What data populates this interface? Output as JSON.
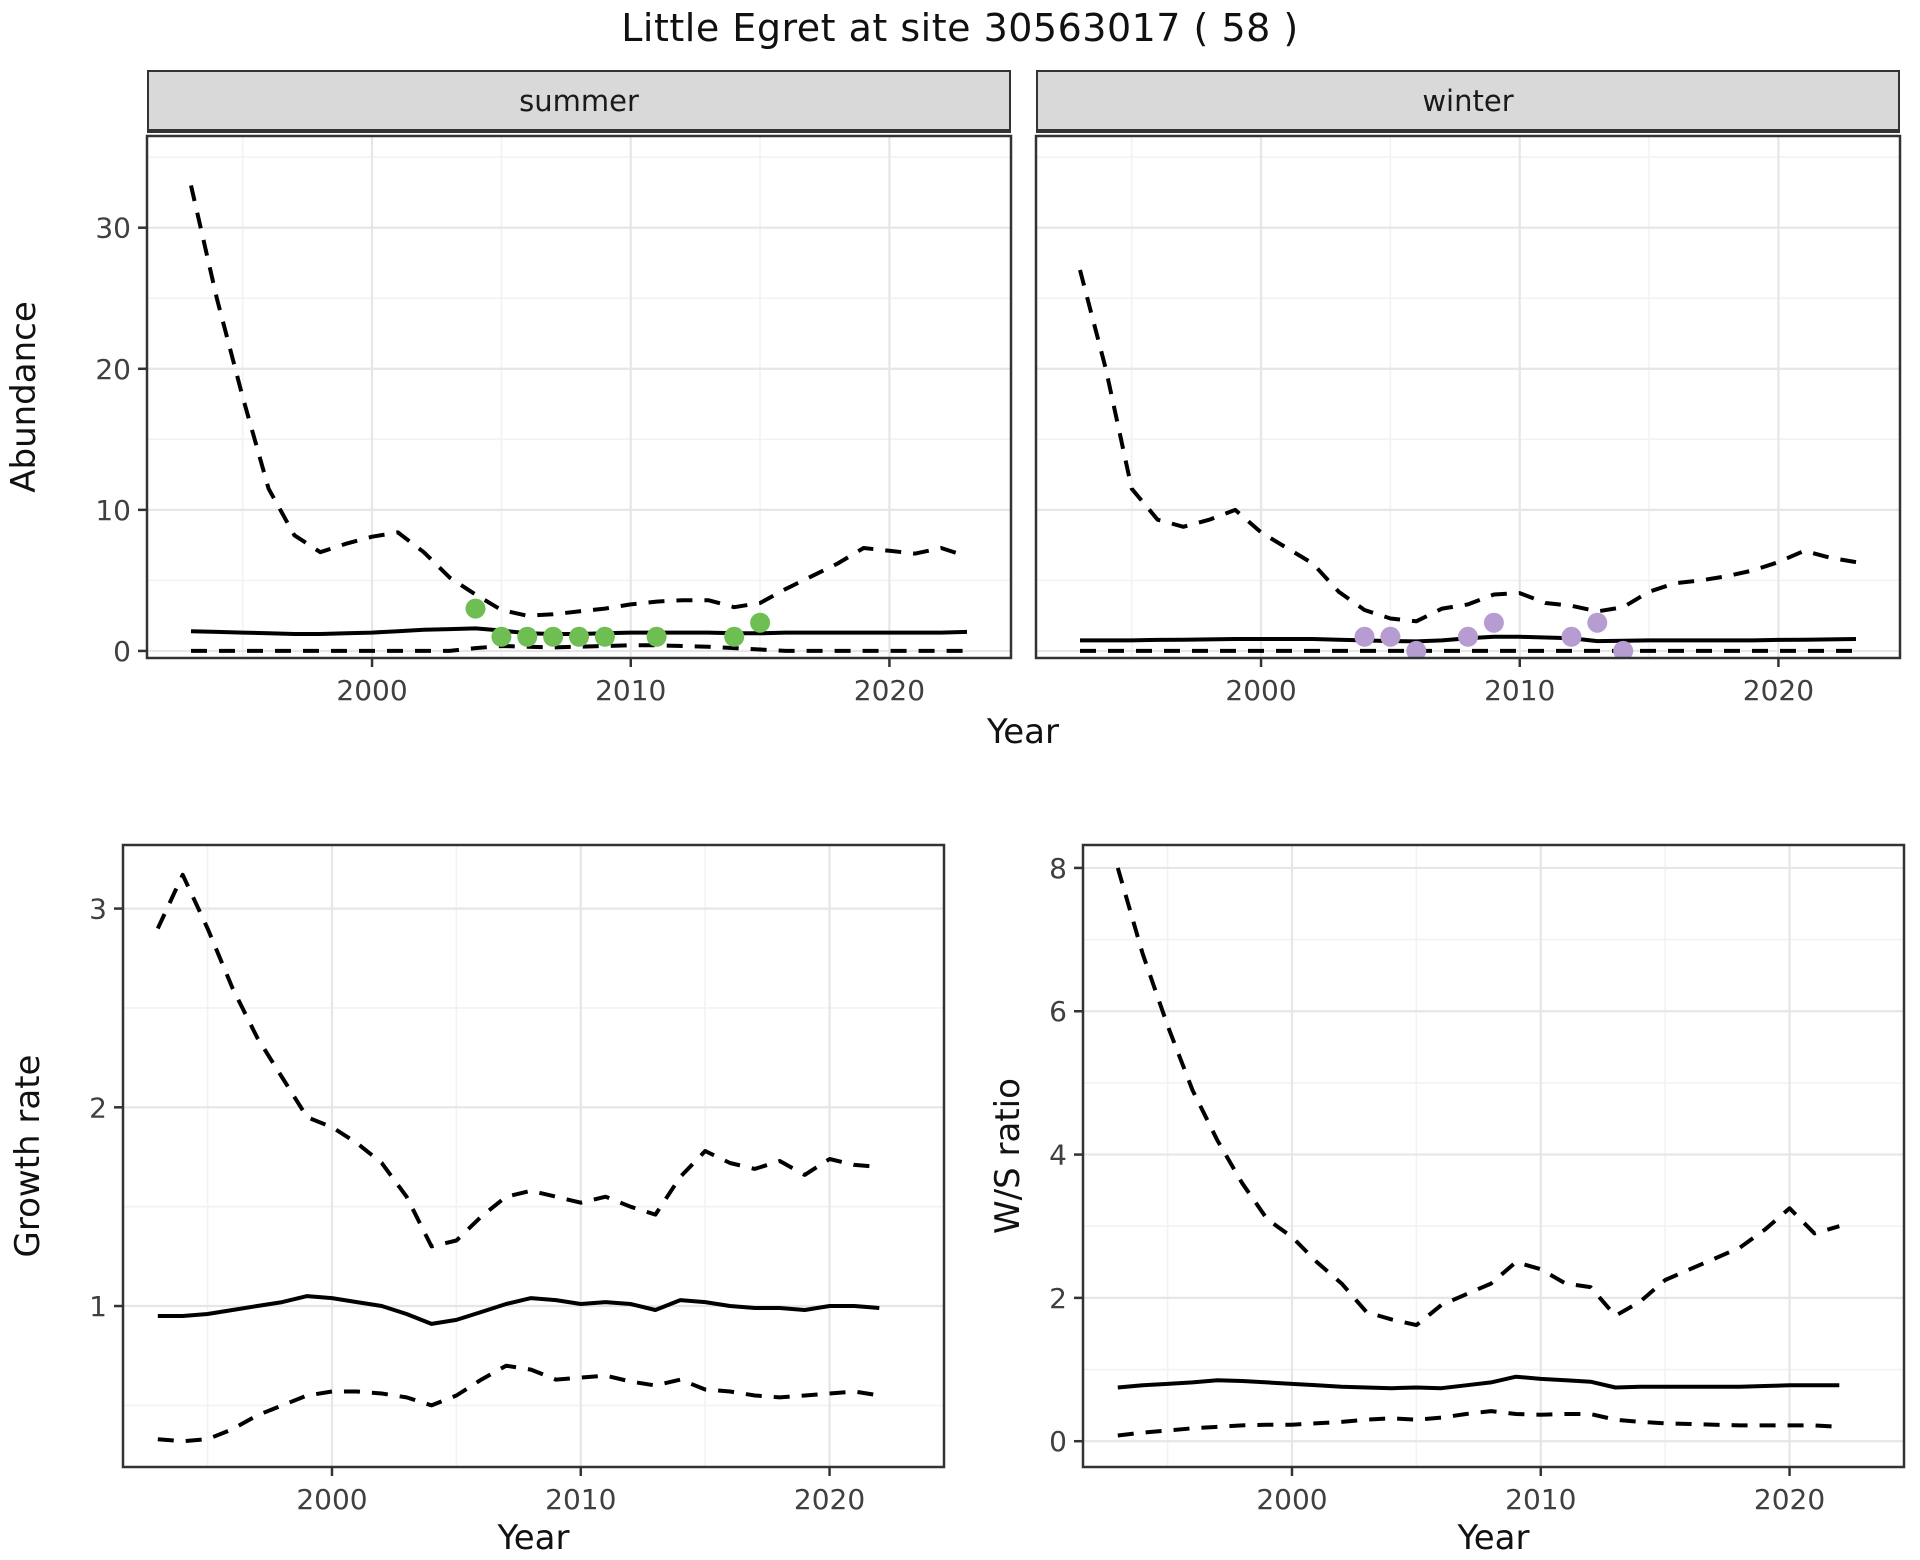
{
  "title": "Little Egret at site 30563017 ( 58 )",
  "colors": {
    "ci_line": "#000000",
    "median_line": "#000000",
    "summer_points": "#6fbe53",
    "winter_points": "#b69cd1",
    "strip_bg": "#d9d9d9",
    "strip_border": "#333333",
    "panel_border": "#333333",
    "grid_major": "#e6e6e6",
    "grid_minor": "#f2f2f2",
    "tick_text": "#404040",
    "title_text": "#111111"
  },
  "chart_data": [
    {
      "name": "abundance-summer",
      "type": "line",
      "facet_label": "summer",
      "xlabel": "Year",
      "ylabel": "Abundance",
      "xlim": [
        1991.3,
        2024.7
      ],
      "ylim": [
        -0.5,
        36.5
      ],
      "xticks": [
        2000,
        2010,
        2020
      ],
      "xticks_minor": [
        1995,
        2005,
        2015
      ],
      "yticks": [
        0,
        10,
        20,
        30
      ],
      "yticks_minor": [
        5,
        15,
        25,
        35
      ],
      "x": [
        1993,
        1994,
        1995,
        1996,
        1997,
        1998,
        1999,
        2000,
        2001,
        2002,
        2003,
        2004,
        2005,
        2006,
        2007,
        2008,
        2009,
        2010,
        2011,
        2012,
        2013,
        2014,
        2015,
        2016,
        2017,
        2018,
        2019,
        2020,
        2021,
        2022,
        2023
      ],
      "series": [
        {
          "name": "upper-95ci",
          "style": "dashed",
          "values": [
            33,
            25,
            18,
            11.5,
            8.2,
            7.0,
            7.6,
            8.1,
            8.4,
            7.0,
            5.2,
            4.0,
            2.9,
            2.5,
            2.6,
            2.8,
            3.0,
            3.3,
            3.5,
            3.6,
            3.6,
            3.1,
            3.4,
            4.4,
            5.3,
            6.2,
            7.3,
            7.1,
            6.9,
            7.3,
            6.7
          ]
        },
        {
          "name": "median",
          "style": "solid",
          "values": [
            1.4,
            1.35,
            1.3,
            1.25,
            1.2,
            1.2,
            1.25,
            1.3,
            1.4,
            1.5,
            1.55,
            1.6,
            1.45,
            1.25,
            1.2,
            1.2,
            1.25,
            1.3,
            1.3,
            1.3,
            1.3,
            1.25,
            1.25,
            1.3,
            1.3,
            1.3,
            1.3,
            1.3,
            1.3,
            1.3,
            1.35
          ]
        },
        {
          "name": "lower-95ci",
          "style": "dashed",
          "values": [
            0,
            0,
            0,
            0,
            0,
            0,
            0,
            0,
            0,
            0,
            0,
            0.2,
            0.35,
            0.3,
            0.25,
            0.3,
            0.35,
            0.4,
            0.4,
            0.35,
            0.3,
            0.2,
            0.1,
            0,
            0,
            0,
            0,
            0,
            0,
            0,
            0
          ]
        }
      ],
      "points": {
        "name": "observed-summer-counts",
        "color_key": "summer_points",
        "x": [
          2004,
          2005,
          2006,
          2007,
          2008,
          2009,
          2011,
          2014,
          2015
        ],
        "y": [
          3,
          1,
          1,
          1,
          1,
          1,
          1,
          1,
          2
        ]
      }
    },
    {
      "name": "abundance-winter",
      "type": "line",
      "facet_label": "winter",
      "xlabel": "Year",
      "ylabel": "Abundance",
      "xlim": [
        1991.3,
        2024.7
      ],
      "ylim": [
        -0.5,
        36.5
      ],
      "xticks": [
        2000,
        2010,
        2020
      ],
      "xticks_minor": [
        1995,
        2005,
        2015
      ],
      "yticks": [
        0,
        10,
        20,
        30
      ],
      "yticks_minor": [
        5,
        15,
        25,
        35
      ],
      "x": [
        1993,
        1994,
        1995,
        1996,
        1997,
        1998,
        1999,
        2000,
        2001,
        2002,
        2003,
        2004,
        2005,
        2006,
        2007,
        2008,
        2009,
        2010,
        2011,
        2012,
        2013,
        2014,
        2015,
        2016,
        2017,
        2018,
        2019,
        2020,
        2021,
        2022,
        2023
      ],
      "series": [
        {
          "name": "upper-95ci",
          "style": "dashed",
          "values": [
            27,
            20,
            11.5,
            9.3,
            8.8,
            9.3,
            10.0,
            8.4,
            7.3,
            6.2,
            4.2,
            2.9,
            2.3,
            2.1,
            3.0,
            3.3,
            4.0,
            4.1,
            3.4,
            3.2,
            2.8,
            3.1,
            4.2,
            4.8,
            5.0,
            5.3,
            5.7,
            6.3,
            7.1,
            6.6,
            6.3
          ]
        },
        {
          "name": "median",
          "style": "solid",
          "values": [
            0.75,
            0.75,
            0.75,
            0.78,
            0.8,
            0.82,
            0.85,
            0.85,
            0.85,
            0.85,
            0.8,
            0.75,
            0.7,
            0.68,
            0.75,
            0.9,
            1.0,
            1.0,
            0.95,
            0.9,
            0.7,
            0.72,
            0.75,
            0.75,
            0.75,
            0.75,
            0.75,
            0.78,
            0.8,
            0.82,
            0.85
          ]
        },
        {
          "name": "lower-95ci",
          "style": "dashed",
          "values": [
            0,
            0,
            0,
            0,
            0,
            0,
            0,
            0,
            0,
            0,
            0,
            0,
            0,
            0,
            0,
            0,
            0,
            0,
            0,
            0,
            0,
            0,
            0,
            0,
            0,
            0,
            0,
            0,
            0,
            0,
            0
          ]
        }
      ],
      "points": {
        "name": "observed-winter-counts",
        "color_key": "winter_points",
        "x": [
          2004,
          2005,
          2006,
          2008,
          2009,
          2012,
          2013,
          2014
        ],
        "y": [
          1,
          1,
          0,
          1,
          2,
          1,
          2,
          0
        ]
      }
    },
    {
      "name": "growth-rate",
      "type": "line",
      "facet_label": "",
      "xlabel": "Year",
      "ylabel": "Growth rate",
      "xlim": [
        1991.6,
        2024.6
      ],
      "ylim": [
        0.19,
        3.32
      ],
      "xticks": [
        2000,
        2010,
        2020
      ],
      "xticks_minor": [
        1995,
        2005,
        2015
      ],
      "yticks": [
        1,
        2,
        3
      ],
      "yticks_minor": [
        0.5,
        1.5,
        2.5
      ],
      "x": [
        1993,
        1994,
        1995,
        1996,
        1997,
        1998,
        1999,
        2000,
        2001,
        2002,
        2003,
        2004,
        2005,
        2006,
        2007,
        2008,
        2009,
        2010,
        2011,
        2012,
        2013,
        2014,
        2015,
        2016,
        2017,
        2018,
        2019,
        2020,
        2021,
        2022
      ],
      "series": [
        {
          "name": "upper-95ci",
          "style": "dashed",
          "values": [
            2.9,
            3.17,
            2.9,
            2.6,
            2.35,
            2.15,
            1.95,
            1.9,
            1.82,
            1.72,
            1.55,
            1.3,
            1.33,
            1.45,
            1.55,
            1.58,
            1.55,
            1.52,
            1.55,
            1.5,
            1.46,
            1.65,
            1.78,
            1.72,
            1.69,
            1.73,
            1.66,
            1.74,
            1.71,
            1.7
          ]
        },
        {
          "name": "median",
          "style": "solid",
          "values": [
            0.95,
            0.95,
            0.96,
            0.98,
            1.0,
            1.02,
            1.05,
            1.04,
            1.02,
            1.0,
            0.96,
            0.91,
            0.93,
            0.97,
            1.01,
            1.04,
            1.03,
            1.01,
            1.02,
            1.01,
            0.98,
            1.03,
            1.02,
            1.0,
            0.99,
            0.99,
            0.98,
            1.0,
            1.0,
            0.99
          ]
        },
        {
          "name": "lower-95ci",
          "style": "dashed",
          "values": [
            0.33,
            0.32,
            0.33,
            0.38,
            0.45,
            0.5,
            0.55,
            0.57,
            0.57,
            0.56,
            0.54,
            0.5,
            0.55,
            0.63,
            0.7,
            0.68,
            0.63,
            0.64,
            0.65,
            0.62,
            0.6,
            0.63,
            0.58,
            0.57,
            0.55,
            0.54,
            0.55,
            0.56,
            0.57,
            0.55
          ]
        }
      ]
    },
    {
      "name": "ws-ratio",
      "type": "line",
      "facet_label": "",
      "xlabel": "Year",
      "ylabel": "W/S ratio",
      "xlim": [
        1991.6,
        2024.6
      ],
      "ylim": [
        -0.36,
        8.32
      ],
      "xticks": [
        2000,
        2010,
        2020
      ],
      "xticks_minor": [
        1995,
        2005,
        2015
      ],
      "yticks": [
        0,
        2,
        4,
        6,
        8
      ],
      "yticks_minor": [
        1,
        3,
        5,
        7
      ],
      "x": [
        1993,
        1994,
        1995,
        1996,
        1997,
        1998,
        1999,
        2000,
        2001,
        2002,
        2003,
        2004,
        2005,
        2006,
        2007,
        2008,
        2009,
        2010,
        2011,
        2012,
        2013,
        2014,
        2015,
        2016,
        2017,
        2018,
        2019,
        2020,
        2021,
        2022
      ],
      "series": [
        {
          "name": "upper-95ci",
          "style": "dashed",
          "values": [
            8.0,
            6.8,
            5.8,
            4.9,
            4.2,
            3.6,
            3.1,
            2.85,
            2.5,
            2.2,
            1.8,
            1.7,
            1.62,
            1.9,
            2.05,
            2.2,
            2.5,
            2.4,
            2.2,
            2.15,
            1.75,
            1.95,
            2.25,
            2.4,
            2.55,
            2.7,
            2.95,
            3.25,
            2.9,
            3.0
          ]
        },
        {
          "name": "median",
          "style": "solid",
          "values": [
            0.75,
            0.78,
            0.8,
            0.82,
            0.85,
            0.84,
            0.82,
            0.8,
            0.78,
            0.76,
            0.75,
            0.74,
            0.75,
            0.74,
            0.78,
            0.82,
            0.9,
            0.87,
            0.85,
            0.83,
            0.75,
            0.76,
            0.76,
            0.76,
            0.76,
            0.76,
            0.77,
            0.78,
            0.78,
            0.78
          ]
        },
        {
          "name": "lower-95ci",
          "style": "dashed",
          "values": [
            0.08,
            0.12,
            0.15,
            0.18,
            0.2,
            0.22,
            0.23,
            0.23,
            0.25,
            0.27,
            0.3,
            0.32,
            0.3,
            0.33,
            0.38,
            0.42,
            0.38,
            0.37,
            0.38,
            0.38,
            0.3,
            0.27,
            0.25,
            0.24,
            0.23,
            0.22,
            0.22,
            0.22,
            0.22,
            0.2
          ]
        }
      ]
    }
  ]
}
